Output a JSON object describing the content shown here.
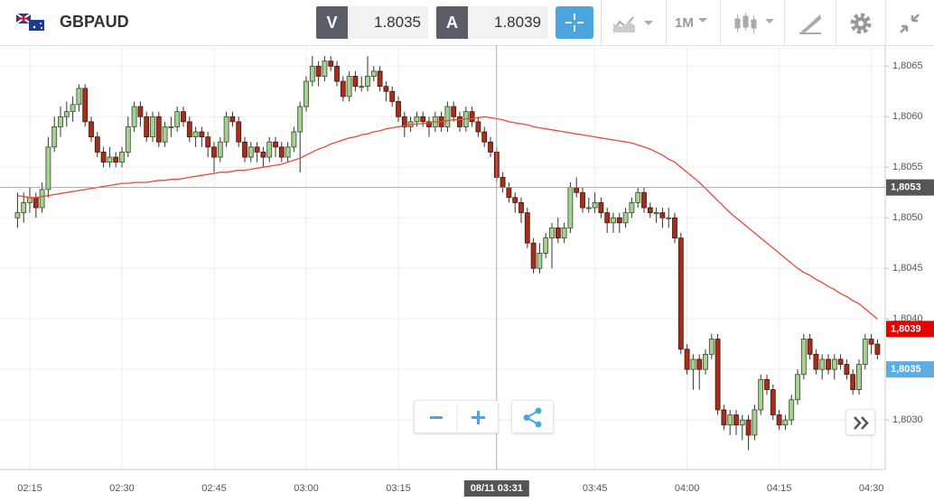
{
  "header": {
    "symbol": "GBPAUD",
    "sell_label": "V",
    "sell_price": "1.8035",
    "buy_label": "A",
    "buy_price": "1.8039",
    "timeframe": "1M"
  },
  "chart_data": {
    "type": "candlestick",
    "categories": [
      null,
      null,
      "02:15",
      null,
      null,
      null,
      null,
      null,
      null,
      null,
      null,
      null,
      null,
      null,
      null,
      null,
      null,
      "02:30",
      null,
      null,
      null,
      null,
      null,
      null,
      null,
      null,
      null,
      null,
      null,
      null,
      null,
      null,
      "02:45",
      null,
      null,
      null,
      null,
      null,
      null,
      null,
      null,
      null,
      null,
      null,
      null,
      null,
      null,
      "03:00",
      null,
      null,
      null,
      null,
      null,
      null,
      null,
      null,
      null,
      null,
      null,
      null,
      null,
      null,
      "03:15",
      null,
      null,
      null,
      null,
      null,
      null,
      null,
      null,
      null,
      null,
      null,
      null,
      null,
      null,
      null,
      null,
      null,
      null,
      null,
      null,
      null,
      null,
      null,
      null,
      null,
      null,
      null,
      null,
      null,
      null,
      null,
      "03:45",
      null,
      null,
      null,
      null,
      null,
      null,
      null,
      null,
      null,
      null,
      null,
      null,
      null,
      null,
      "04:00",
      null,
      null,
      null,
      null,
      null,
      null,
      null,
      null,
      null,
      null,
      null,
      null,
      null,
      null,
      "04:15",
      null,
      null,
      null,
      null,
      null,
      null,
      null,
      null,
      null,
      null,
      null,
      null,
      null,
      null,
      "04:30",
      null,
      null,
      null
    ],
    "candles": [
      [
        1.805,
        1.80525,
        1.8049,
        1.80505
      ],
      [
        1.80505,
        1.80525,
        1.80495,
        1.80515
      ],
      [
        1.80515,
        1.8053,
        1.80505,
        1.8052
      ],
      [
        1.8052,
        1.80525,
        1.805,
        1.8051
      ],
      [
        1.8051,
        1.80535,
        1.80505,
        1.80528
      ],
      [
        1.80528,
        1.8058,
        1.8052,
        1.8057
      ],
      [
        1.8057,
        1.806,
        1.80565,
        1.8059
      ],
      [
        1.8059,
        1.8061,
        1.8058,
        1.806
      ],
      [
        1.806,
        1.80615,
        1.8059,
        1.80605
      ],
      [
        1.80605,
        1.8062,
        1.80595,
        1.80612
      ],
      [
        1.80612,
        1.80632,
        1.80605,
        1.80628
      ],
      [
        1.80628,
        1.80632,
        1.8059,
        1.80595
      ],
      [
        1.80595,
        1.806,
        1.80575,
        1.8058
      ],
      [
        1.8058,
        1.80585,
        1.8056,
        1.80565
      ],
      [
        1.80565,
        1.8057,
        1.8055,
        1.80555
      ],
      [
        1.80555,
        1.8057,
        1.8055,
        1.8056
      ],
      [
        1.8056,
        1.80565,
        1.8055,
        1.80555
      ],
      [
        1.80555,
        1.8057,
        1.8055,
        1.80565
      ],
      [
        1.80565,
        1.806,
        1.8056,
        1.8059
      ],
      [
        1.8059,
        1.80615,
        1.80585,
        1.8061
      ],
      [
        1.8061,
        1.80615,
        1.8059,
        1.806
      ],
      [
        1.806,
        1.80605,
        1.80575,
        1.8058
      ],
      [
        1.8058,
        1.80605,
        1.80575,
        1.806
      ],
      [
        1.806,
        1.80605,
        1.8057,
        1.80575
      ],
      [
        1.80575,
        1.80595,
        1.8057,
        1.8059
      ],
      [
        1.8059,
        1.806,
        1.8058,
        1.8059
      ],
      [
        1.8059,
        1.8061,
        1.80585,
        1.80605
      ],
      [
        1.80605,
        1.8061,
        1.8059,
        1.80595
      ],
      [
        1.80595,
        1.806,
        1.80575,
        1.8058
      ],
      [
        1.8058,
        1.8059,
        1.8057,
        1.80585
      ],
      [
        1.80585,
        1.8059,
        1.8057,
        1.8058
      ],
      [
        1.8058,
        1.80585,
        1.8056,
        1.8057
      ],
      [
        1.8057,
        1.80575,
        1.80545,
        1.8056
      ],
      [
        1.8056,
        1.8058,
        1.80555,
        1.80575
      ],
      [
        1.80575,
        1.80605,
        1.8057,
        1.806
      ],
      [
        1.806,
        1.80605,
        1.8059,
        1.80595
      ],
      [
        1.80595,
        1.806,
        1.8057,
        1.80575
      ],
      [
        1.80575,
        1.8058,
        1.80555,
        1.8056
      ],
      [
        1.8056,
        1.80575,
        1.80555,
        1.8057
      ],
      [
        1.8057,
        1.80575,
        1.80555,
        1.80565
      ],
      [
        1.80565,
        1.8057,
        1.8055,
        1.8056
      ],
      [
        1.8056,
        1.8058,
        1.80555,
        1.80575
      ],
      [
        1.80575,
        1.8058,
        1.8056,
        1.8057
      ],
      [
        1.8057,
        1.80575,
        1.80555,
        1.8056
      ],
      [
        1.8056,
        1.80575,
        1.80555,
        1.8057
      ],
      [
        1.8057,
        1.8059,
        1.80565,
        1.80585
      ],
      [
        1.80585,
        1.80615,
        1.80545,
        1.8061
      ],
      [
        1.8061,
        1.8064,
        1.80605,
        1.80635
      ],
      [
        1.80635,
        1.8066,
        1.8063,
        1.8065
      ],
      [
        1.8065,
        1.80655,
        1.8063,
        1.8064
      ],
      [
        1.8064,
        1.8066,
        1.80635,
        1.80655
      ],
      [
        1.80655,
        1.8066,
        1.80645,
        1.8065
      ],
      [
        1.8065,
        1.80655,
        1.8063,
        1.80635
      ],
      [
        1.80635,
        1.8064,
        1.80615,
        1.8062
      ],
      [
        1.8062,
        1.80645,
        1.80615,
        1.8064
      ],
      [
        1.8064,
        1.80645,
        1.80625,
        1.8063
      ],
      [
        1.8063,
        1.8064,
        1.80625,
        1.8063
      ],
      [
        1.8063,
        1.8066,
        1.80625,
        1.8064
      ],
      [
        1.8064,
        1.8065,
        1.80635,
        1.80645
      ],
      [
        1.80645,
        1.8065,
        1.80625,
        1.8063
      ],
      [
        1.8063,
        1.80635,
        1.80615,
        1.80625
      ],
      [
        1.80625,
        1.8063,
        1.8061,
        1.80615
      ],
      [
        1.80615,
        1.8062,
        1.80595,
        1.806
      ],
      [
        1.806,
        1.80605,
        1.8058,
        1.8059
      ],
      [
        1.8059,
        1.806,
        1.80585,
        1.80595
      ],
      [
        1.80595,
        1.80605,
        1.8059,
        1.806
      ],
      [
        1.806,
        1.80605,
        1.8059,
        1.80595
      ],
      [
        1.80595,
        1.806,
        1.8058,
        1.8059
      ],
      [
        1.8059,
        1.80605,
        1.80585,
        1.806
      ],
      [
        1.806,
        1.80605,
        1.80585,
        1.8059
      ],
      [
        1.8059,
        1.80615,
        1.80585,
        1.8061
      ],
      [
        1.8061,
        1.80615,
        1.80595,
        1.806
      ],
      [
        1.806,
        1.80605,
        1.80585,
        1.8059
      ],
      [
        1.8059,
        1.8061,
        1.80585,
        1.80605
      ],
      [
        1.80605,
        1.8061,
        1.8059,
        1.80595
      ],
      [
        1.80595,
        1.806,
        1.8058,
        1.80585
      ],
      [
        1.80585,
        1.8059,
        1.8057,
        1.80575
      ],
      [
        1.80575,
        1.8058,
        1.8056,
        1.80565
      ],
      [
        1.80565,
        1.8057,
        1.80535,
        1.8054
      ],
      [
        1.8054,
        1.80545,
        1.80525,
        1.8053
      ],
      [
        1.8053,
        1.80535,
        1.80515,
        1.8052
      ],
      [
        1.8052,
        1.80525,
        1.80505,
        1.80515
      ],
      [
        1.80515,
        1.8052,
        1.80495,
        1.80505
      ],
      [
        1.80505,
        1.8051,
        1.8047,
        1.80475
      ],
      [
        1.80475,
        1.8048,
        1.80445,
        1.8045
      ],
      [
        1.8045,
        1.80475,
        1.80445,
        1.80465
      ],
      [
        1.80465,
        1.80485,
        1.8046,
        1.8048
      ],
      [
        1.8048,
        1.80495,
        1.8045,
        1.8049
      ],
      [
        1.8049,
        1.805,
        1.80475,
        1.8048
      ],
      [
        1.8048,
        1.80495,
        1.80475,
        1.8049
      ],
      [
        1.8049,
        1.80535,
        1.80485,
        1.8053
      ],
      [
        1.8053,
        1.8054,
        1.8052,
        1.80525
      ],
      [
        1.80525,
        1.8053,
        1.80505,
        1.8051
      ],
      [
        1.8051,
        1.8052,
        1.80505,
        1.8051
      ],
      [
        1.8051,
        1.80525,
        1.80505,
        1.80515
      ],
      [
        1.80515,
        1.8052,
        1.805,
        1.80505
      ],
      [
        1.80505,
        1.8051,
        1.80485,
        1.80495
      ],
      [
        1.80495,
        1.80505,
        1.80485,
        1.805
      ],
      [
        1.805,
        1.80505,
        1.80485,
        1.80495
      ],
      [
        1.80495,
        1.8051,
        1.8049,
        1.80505
      ],
      [
        1.80505,
        1.8052,
        1.805,
        1.80515
      ],
      [
        1.80515,
        1.8053,
        1.8051,
        1.80525
      ],
      [
        1.80525,
        1.8053,
        1.80505,
        1.8051
      ],
      [
        1.8051,
        1.80515,
        1.805,
        1.80505
      ],
      [
        1.80505,
        1.8051,
        1.80495,
        1.80505
      ],
      [
        1.80505,
        1.8051,
        1.8049,
        1.805
      ],
      [
        1.805,
        1.8051,
        1.8049,
        1.805
      ],
      [
        1.805,
        1.80505,
        1.80475,
        1.8048
      ],
      [
        1.8048,
        1.80485,
        1.80365,
        1.8037
      ],
      [
        1.8037,
        1.80375,
        1.80345,
        1.8035
      ],
      [
        1.8035,
        1.80365,
        1.8033,
        1.8036
      ],
      [
        1.8036,
        1.80365,
        1.8033,
        1.8035
      ],
      [
        1.8035,
        1.8037,
        1.80345,
        1.80365
      ],
      [
        1.80365,
        1.80385,
        1.8036,
        1.8038
      ],
      [
        1.8038,
        1.80385,
        1.80305,
        1.8031
      ],
      [
        1.8031,
        1.80315,
        1.8029,
        1.80295
      ],
      [
        1.80295,
        1.8031,
        1.80285,
        1.80305
      ],
      [
        1.80305,
        1.8031,
        1.80285,
        1.80295
      ],
      [
        1.80295,
        1.80305,
        1.8028,
        1.803
      ],
      [
        1.803,
        1.80305,
        1.8027,
        1.80285
      ],
      [
        1.80285,
        1.80315,
        1.8028,
        1.8031
      ],
      [
        1.8031,
        1.80345,
        1.80305,
        1.8034
      ],
      [
        1.8034,
        1.80345,
        1.80325,
        1.8033
      ],
      [
        1.8033,
        1.80335,
        1.803,
        1.80305
      ],
      [
        1.80305,
        1.8031,
        1.8029,
        1.80295
      ],
      [
        1.80295,
        1.80305,
        1.8029,
        1.803
      ],
      [
        1.803,
        1.80325,
        1.80295,
        1.8032
      ],
      [
        1.8032,
        1.8035,
        1.80315,
        1.80345
      ],
      [
        1.80345,
        1.80385,
        1.8034,
        1.8038
      ],
      [
        1.8038,
        1.80385,
        1.8036,
        1.80365
      ],
      [
        1.80365,
        1.8037,
        1.80345,
        1.8035
      ],
      [
        1.8035,
        1.80365,
        1.8034,
        1.8036
      ],
      [
        1.8036,
        1.80365,
        1.80345,
        1.8035
      ],
      [
        1.8035,
        1.80365,
        1.8034,
        1.8036
      ],
      [
        1.8036,
        1.80365,
        1.8035,
        1.80355
      ],
      [
        1.80355,
        1.8036,
        1.8034,
        1.80345
      ],
      [
        1.80345,
        1.8035,
        1.80325,
        1.8033
      ],
      [
        1.8033,
        1.8036,
        1.80325,
        1.80355
      ],
      [
        1.80355,
        1.80385,
        1.8035,
        1.8038
      ],
      [
        1.8038,
        1.80385,
        1.80365,
        1.80375
      ],
      [
        1.80375,
        1.8038,
        1.8036,
        1.80365
      ]
    ],
    "up_color": "#a9d093",
    "down_color": "#a3301c",
    "ma": {
      "color": "#e8483c",
      "values": [
        1.80522,
        1.80521,
        1.8052,
        1.8052,
        1.80521,
        1.80522,
        1.80523,
        1.80524,
        1.80525,
        1.80526,
        1.80527,
        1.80528,
        1.80529,
        1.8053,
        1.80531,
        1.80532,
        1.80533,
        1.80534,
        1.80534,
        1.80535,
        1.80535,
        1.80535,
        1.80536,
        1.80537,
        1.80537,
        1.80538,
        1.80538,
        1.80539,
        1.8054,
        1.80541,
        1.80542,
        1.80543,
        1.80544,
        1.80545,
        1.80545,
        1.80546,
        1.80547,
        1.80547,
        1.80548,
        1.80549,
        1.8055,
        1.80551,
        1.80552,
        1.80553,
        1.80555,
        1.80557,
        1.80559,
        1.80562,
        1.80565,
        1.80568,
        1.8057,
        1.80573,
        1.80575,
        1.80577,
        1.80579,
        1.8058,
        1.80582,
        1.80583,
        1.80585,
        1.80586,
        1.80588,
        1.80589,
        1.8059,
        1.80591,
        1.80592,
        1.80593,
        1.80593,
        1.80594,
        1.80595,
        1.80595,
        1.80596,
        1.80597,
        1.80597,
        1.80598,
        1.80598,
        1.80599,
        1.806,
        1.80599,
        1.80598,
        1.80597,
        1.80595,
        1.80594,
        1.80593,
        1.80592,
        1.8059,
        1.80589,
        1.80588,
        1.80587,
        1.80586,
        1.80585,
        1.80584,
        1.80583,
        1.80582,
        1.80581,
        1.8058,
        1.80579,
        1.80578,
        1.80577,
        1.80576,
        1.80575,
        1.80574,
        1.80572,
        1.8057,
        1.80568,
        1.80565,
        1.80562,
        1.80558,
        1.80555,
        1.8055,
        1.80545,
        1.8054,
        1.80535,
        1.80529,
        1.80523,
        1.80517,
        1.80511,
        1.80505,
        1.805,
        1.80495,
        1.8049,
        1.80485,
        1.8048,
        1.80475,
        1.8047,
        1.80465,
        1.8046,
        1.80455,
        1.8045,
        1.80446,
        1.80443,
        1.80439,
        1.80436,
        1.80432,
        1.80429,
        1.80425,
        1.80422,
        1.80418,
        1.80415,
        1.8041,
        1.80405,
        1.804
      ]
    },
    "ylim": [
      1.80251,
      1.80669
    ],
    "yticks": [
      {
        "value": 1.803,
        "label": "1,8030"
      },
      {
        "value": 1.8035,
        "label": "1,8035"
      },
      {
        "value": 1.804,
        "label": "1,8040"
      },
      {
        "value": 1.8045,
        "label": "1,8045"
      },
      {
        "value": 1.805,
        "label": "1,8050"
      },
      {
        "value": 1.8055,
        "label": "1,8055"
      },
      {
        "value": 1.806,
        "label": "1,8060"
      },
      {
        "value": 1.8065,
        "label": "1,8065"
      }
    ],
    "grid": true,
    "crosshair": {
      "price": {
        "value": 1.8053,
        "label": "1,8053"
      },
      "time_label": "08/11 03:31"
    },
    "price_tags": [
      {
        "value": 1.8039,
        "label": "1,8039",
        "color": "#e60000"
      },
      {
        "value": 1.8035,
        "label": "1,8035",
        "color": "#5aaee0"
      }
    ]
  }
}
